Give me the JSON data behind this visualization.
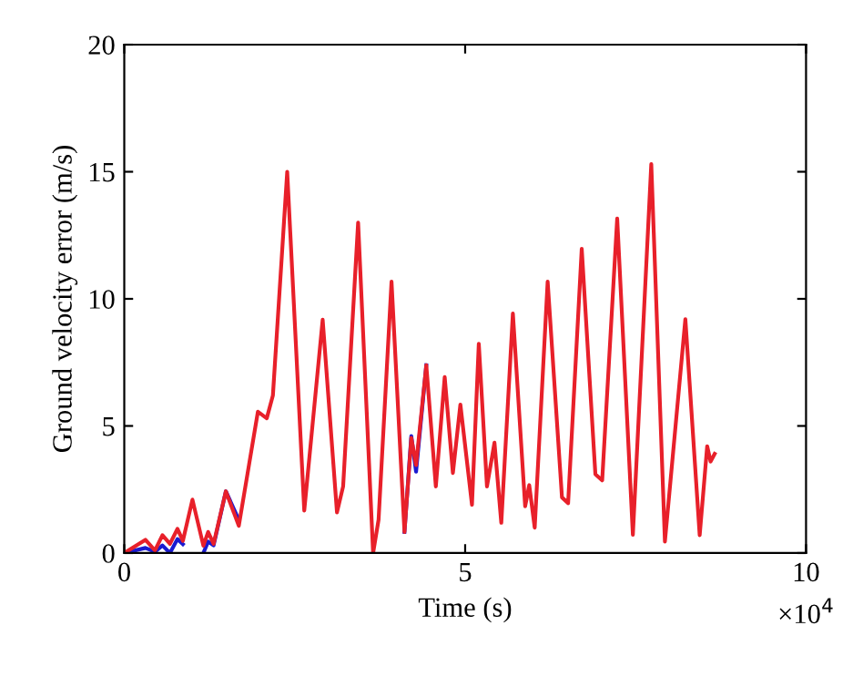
{
  "chart_data": {
    "type": "line",
    "xlabel": "Time (s)",
    "ylabel": "Ground velocity error (m/s)",
    "xlim": [
      0,
      10
    ],
    "ylim": [
      0,
      20
    ],
    "xticks": [
      0,
      5,
      10
    ],
    "yticks": [
      0,
      5,
      10,
      15,
      20
    ],
    "grid": false,
    "marker": "none",
    "line_style": "solid",
    "annotations": [
      "×10$^{4}$"
    ],
    "series": [
      {
        "color": "#1a1ad0",
        "x": [
          0,
          0.31,
          0.45,
          0.56,
          0.67,
          0.78,
          0.86,
          1.0,
          1.16,
          1.23,
          1.31,
          1.49,
          1.68,
          3.0,
          4.11,
          4.21,
          4.28,
          4.43
        ],
        "values": [
          0,
          0.2,
          0.05,
          0.3,
          0,
          0.55,
          0.35,
          null,
          0,
          0.45,
          0.3,
          2.43,
          1.3,
          null,
          0.83,
          4.6,
          3.2,
          7.39
        ]
      },
      {
        "color": "#e8202a",
        "x": [
          0,
          0.31,
          0.45,
          0.56,
          0.67,
          0.78,
          0.86,
          1.0,
          1.16,
          1.23,
          1.31,
          1.49,
          1.68,
          1.96,
          2.09,
          2.18,
          2.39,
          2.64,
          2.91,
          3.12,
          3.21,
          3.43,
          3.65,
          3.73,
          3.92,
          4.11,
          4.21,
          4.28,
          4.43,
          4.57,
          4.7,
          4.82,
          4.93,
          5.1,
          5.2,
          5.32,
          5.43,
          5.53,
          5.7,
          5.88,
          5.94,
          6.02,
          6.21,
          6.42,
          6.51,
          6.71,
          6.91,
          7.01,
          7.23,
          7.46,
          7.73,
          7.93,
          8.23,
          8.44,
          8.55,
          8.6,
          8.66
        ],
        "values": [
          0,
          0.52,
          0.1,
          0.7,
          0.36,
          0.95,
          0.48,
          2.1,
          0.29,
          0.83,
          0.36,
          2.43,
          1.07,
          5.56,
          5.3,
          6.2,
          15.0,
          1.67,
          9.18,
          1.6,
          2.62,
          13.0,
          0,
          1.31,
          10.68,
          0.83,
          4.53,
          3.46,
          7.39,
          2.62,
          6.92,
          3.15,
          5.84,
          1.9,
          8.23,
          2.62,
          4.34,
          1.19,
          9.42,
          1.84,
          2.67,
          1.0,
          10.68,
          2.19,
          1.96,
          11.97,
          3.1,
          2.86,
          13.16,
          0.72,
          15.3,
          0.45,
          9.2,
          0.7,
          4.2,
          3.6,
          3.9
        ]
      }
    ]
  }
}
